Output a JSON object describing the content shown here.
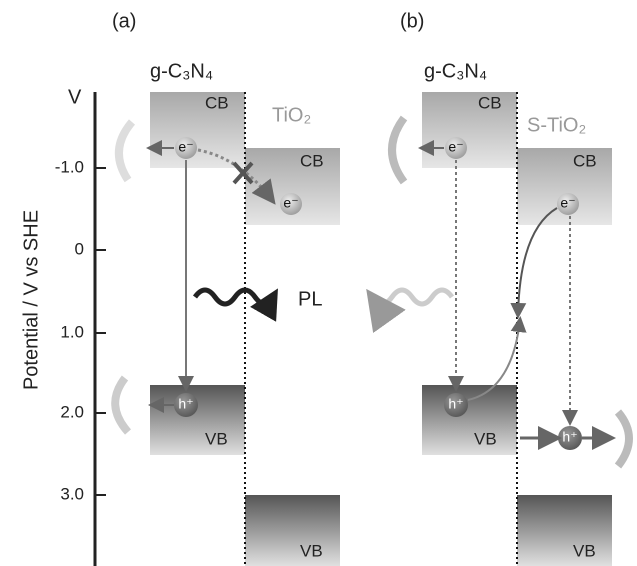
{
  "panels": [
    {
      "label": "(a)",
      "left_material": "g-C₃N₄",
      "right_material": "TiO₂"
    },
    {
      "label": "(b)",
      "left_material": "g-C₃N₄",
      "right_material": "S-TiO₂"
    }
  ],
  "axis": {
    "unit": "V",
    "title": "Potential / V vs SHE",
    "ticks": [
      "-1.0",
      "0",
      "1.0",
      "2.0",
      "3.0"
    ]
  },
  "bands": {
    "cb": "CB",
    "vb": "VB"
  },
  "carriers": {
    "electron": "e⁻",
    "hole": "h⁺"
  },
  "emission": "PL"
}
